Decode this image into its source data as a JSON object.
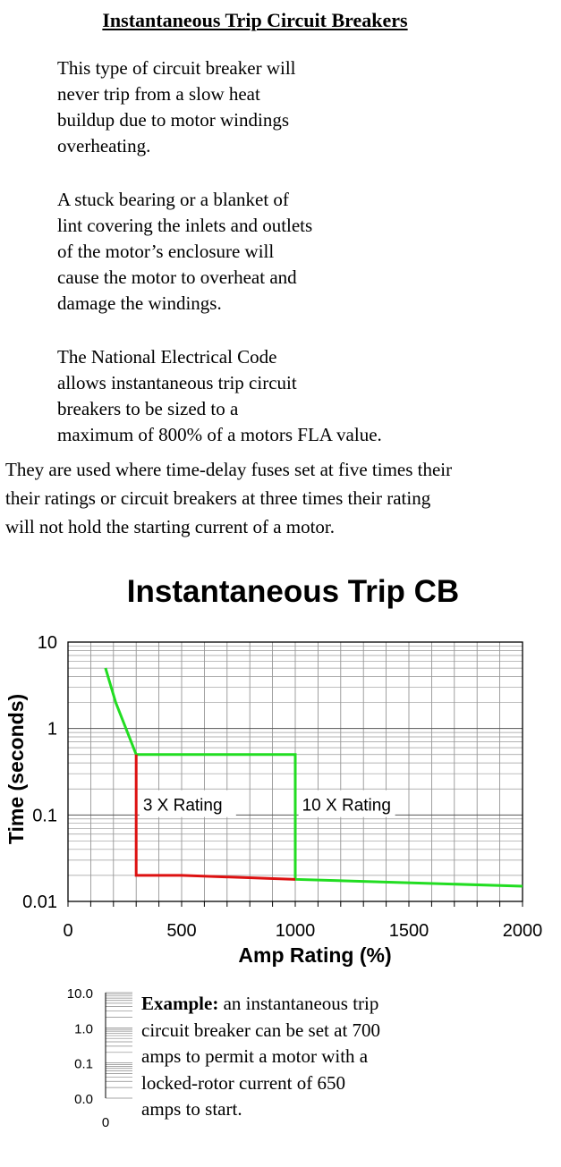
{
  "page": {
    "title": "Instantaneous Trip Circuit Breakers",
    "paragraphs": [
      [
        "This type of circuit breaker will",
        "never trip from a slow heat",
        "buildup due to motor windings",
        "overheating."
      ],
      [
        "A stuck bearing or a blanket of",
        "lint covering the inlets and outlets",
        "of the motor’s enclosure will",
        "cause the motor to overheat and",
        "damage the windings."
      ],
      [
        "The National Electrical Code",
        "allows instantaneous trip circuit",
        "breakers to be sized to a",
        "maximum of 800% of a motors FLA value."
      ],
      [
        "They are used where time-delay fuses set at five times their",
        "their ratings or circuit breakers at  three times their rating",
        " will not hold the starting current of a motor."
      ]
    ],
    "example": {
      "label": "Example:",
      "text_first": "  an instantaneous trip",
      "lines": [
        "circuit breaker can be set at 700",
        "amps to permit a motor with a",
        "locked-rotor current of 650",
        "amps to start."
      ]
    }
  },
  "chart_data": [
    {
      "type": "line",
      "title": "Instantaneous Trip CB",
      "xlabel": "Amp Rating (%)",
      "ylabel": "Time (seconds)",
      "xlim": [
        0,
        2000
      ],
      "ylim": [
        0.01,
        10
      ],
      "yscale": "log",
      "grid": true,
      "x_ticks": [
        "0",
        "500",
        "1000",
        "1500",
        "2000"
      ],
      "y_ticks": [
        "0.01",
        "0.1",
        "1",
        "10"
      ],
      "series": [
        {
          "color": "#22dd22",
          "points": [
            [
              165,
              5
            ],
            [
              210,
              2
            ],
            [
              300,
              0.5
            ],
            [
              1000,
              0.5
            ],
            [
              1000,
              0.018
            ],
            [
              2000,
              0.015
            ]
          ]
        },
        {
          "color": "#dd1111",
          "points": [
            [
              300,
              0.5
            ],
            [
              300,
              0.02
            ],
            [
              500,
              0.02
            ],
            [
              1000,
              0.018
            ]
          ]
        }
      ],
      "annotations": [
        {
          "text": "3 X Rating",
          "x": 330,
          "y": 0.12
        },
        {
          "text": "10 X Rating",
          "x": 1030,
          "y": 0.12
        }
      ]
    },
    {
      "type": "line",
      "y_ticks": [
        "10.0",
        "1.0",
        "0.1",
        "0.0"
      ],
      "x_ticks": [
        "0"
      ],
      "grid": true
    }
  ]
}
